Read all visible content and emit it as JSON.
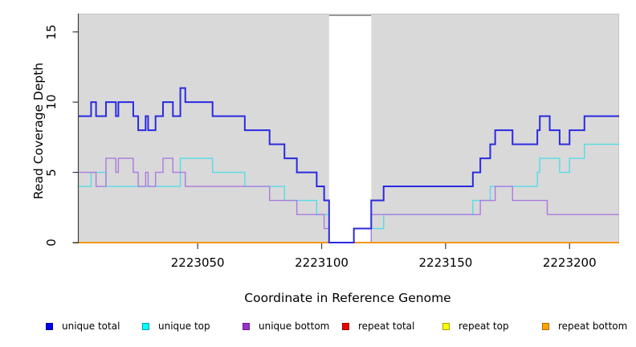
{
  "axes": {
    "xlabel": "Coordinate in Reference Genome",
    "ylabel": "Read Coverage Depth",
    "x_tick_labels": [
      "2223050",
      "2223100",
      "2223150",
      "2223200"
    ],
    "y_tick_labels": [
      "0",
      "5",
      "10",
      "15"
    ]
  },
  "chart_data": {
    "type": "line",
    "step": true,
    "title": "",
    "xlabel": "Coordinate in Reference Genome",
    "ylabel": "Read Coverage Depth",
    "xlim": [
      2223002,
      2223220
    ],
    "ylim": [
      0,
      16.3
    ],
    "x_tick_values": [
      2223050,
      2223100,
      2223150,
      2223200
    ],
    "y_tick_values": [
      0,
      5,
      10,
      15
    ],
    "grid": false,
    "panel_bg": "#d9d9d9",
    "gap_region": {
      "x_start": 2223103,
      "x_end": 2223120,
      "fill": "#ffffff",
      "top_edge": "#8e8e8e"
    },
    "legend_position": "bottom",
    "series": [
      {
        "name": "unique total",
        "color": "#0000ee",
        "line_color": "#2a2ae0",
        "steps": [
          [
            2223002,
            9
          ],
          [
            2223007,
            10
          ],
          [
            2223009,
            9
          ],
          [
            2223013,
            10
          ],
          [
            2223017,
            9
          ],
          [
            2223018,
            10
          ],
          [
            2223024,
            9
          ],
          [
            2223026,
            8
          ],
          [
            2223029,
            9
          ],
          [
            2223030,
            8
          ],
          [
            2223033,
            9
          ],
          [
            2223036,
            10
          ],
          [
            2223040,
            9
          ],
          [
            2223043,
            11
          ],
          [
            2223045,
            10
          ],
          [
            2223056,
            9
          ],
          [
            2223069,
            8
          ],
          [
            2223079,
            7
          ],
          [
            2223085,
            6
          ],
          [
            2223090,
            5
          ],
          [
            2223098,
            4
          ],
          [
            2223101,
            3
          ],
          [
            2223103,
            0
          ],
          [
            2223113,
            1
          ],
          [
            2223120,
            3
          ],
          [
            2223125,
            4
          ],
          [
            2223161,
            5
          ],
          [
            2223164,
            6
          ],
          [
            2223168,
            7
          ],
          [
            2223170,
            8
          ],
          [
            2223177,
            7
          ],
          [
            2223187,
            8
          ],
          [
            2223188,
            9
          ],
          [
            2223192,
            8
          ],
          [
            2223196,
            7
          ],
          [
            2223200,
            8
          ],
          [
            2223206,
            9
          ],
          [
            2223220,
            9
          ]
        ]
      },
      {
        "name": "unique top",
        "color": "#00ffff",
        "line_color": "#55dce8",
        "steps": [
          [
            2223002,
            4
          ],
          [
            2223007,
            5
          ],
          [
            2223013,
            4
          ],
          [
            2223043,
            6
          ],
          [
            2223056,
            5
          ],
          [
            2223069,
            4
          ],
          [
            2223085,
            3
          ],
          [
            2223098,
            2
          ],
          [
            2223103,
            0
          ],
          [
            2223120,
            1
          ],
          [
            2223125,
            2
          ],
          [
            2223161,
            3
          ],
          [
            2223168,
            4
          ],
          [
            2223187,
            5
          ],
          [
            2223188,
            6
          ],
          [
            2223196,
            5
          ],
          [
            2223200,
            6
          ],
          [
            2223206,
            7
          ],
          [
            2223220,
            7
          ]
        ]
      },
      {
        "name": "unique bottom",
        "color": "#9932cc",
        "line_color": "#ab7ae0",
        "steps": [
          [
            2223002,
            5
          ],
          [
            2223009,
            4
          ],
          [
            2223013,
            6
          ],
          [
            2223017,
            5
          ],
          [
            2223018,
            6
          ],
          [
            2223024,
            5
          ],
          [
            2223026,
            4
          ],
          [
            2223029,
            5
          ],
          [
            2223030,
            4
          ],
          [
            2223033,
            5
          ],
          [
            2223036,
            6
          ],
          [
            2223040,
            5
          ],
          [
            2223045,
            4
          ],
          [
            2223079,
            3
          ],
          [
            2223090,
            2
          ],
          [
            2223101,
            1
          ],
          [
            2223103,
            0
          ],
          [
            2223120,
            2
          ],
          [
            2223164,
            3
          ],
          [
            2223170,
            4
          ],
          [
            2223177,
            3
          ],
          [
            2223191,
            2
          ],
          [
            2223220,
            2
          ]
        ]
      },
      {
        "name": "repeat total",
        "color": "#ee0000",
        "line_color": "#dd0000",
        "steps": [
          [
            2223002,
            0
          ],
          [
            2223220,
            0
          ]
        ]
      },
      {
        "name": "repeat top",
        "color": "#ffff00",
        "line_color": "#f2e500",
        "steps": [
          [
            2223002,
            0
          ],
          [
            2223220,
            0
          ]
        ]
      },
      {
        "name": "repeat bottom",
        "color": "#ffa500",
        "line_color": "#ff9500",
        "steps": [
          [
            2223002,
            0
          ],
          [
            2223220,
            0
          ]
        ]
      }
    ],
    "draw_order": [
      1,
      2,
      3,
      4,
      5,
      0
    ]
  },
  "legend": {
    "items": [
      {
        "label": "unique total",
        "color": "#0000ee",
        "border": "#0000a0"
      },
      {
        "label": "unique top",
        "color": "#00ffff",
        "border": "#00a0b0"
      },
      {
        "label": "unique bottom",
        "color": "#9932cc",
        "border": "#6a1b9a"
      },
      {
        "label": "repeat total",
        "color": "#ee0000",
        "border": "#990000"
      },
      {
        "label": "repeat top",
        "color": "#ffff00",
        "border": "#a0a000"
      },
      {
        "label": "repeat bottom",
        "color": "#ffa500",
        "border": "#b36b00"
      }
    ]
  }
}
